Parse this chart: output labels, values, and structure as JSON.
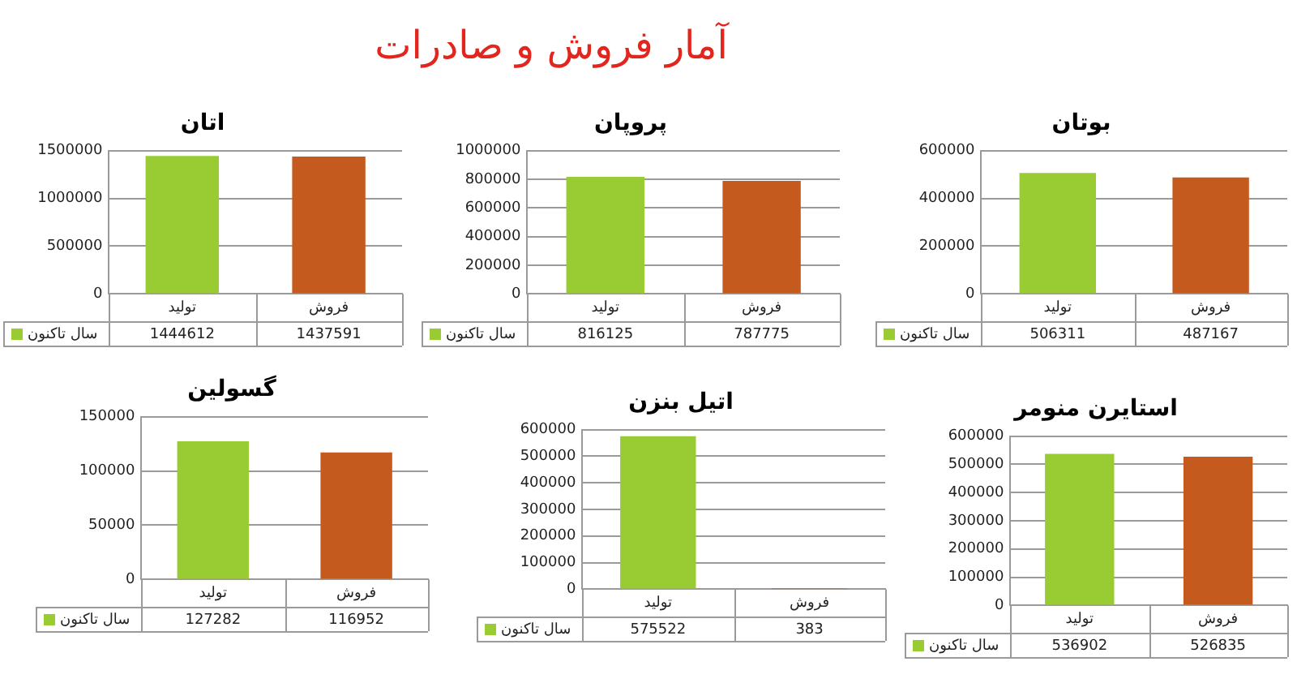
{
  "chart_data": [
    {
      "type": "bar",
      "title": "اتان",
      "annotations": [
        "آمار فروش و صادرات"
      ],
      "categories": [
        "تولید",
        "فروش"
      ],
      "series": [
        {
          "name": "سال تاکنون",
          "color": "#99cc33",
          "colors": [
            "#99cc33",
            "#c55a1e"
          ],
          "values": [
            1444612,
            1437591
          ]
        }
      ],
      "ylim": [
        0,
        1500000
      ],
      "yticks": [
        0,
        500000,
        1000000,
        1500000
      ],
      "grid": "y",
      "legend": "bottom left",
      "data_labels": true
    },
    {
      "type": "bar",
      "title": "پروپان",
      "categories": [
        "تولید",
        "فروش"
      ],
      "series": [
        {
          "name": "سال تاکنون",
          "color": "#99cc33",
          "colors": [
            "#99cc33",
            "#c55a1e"
          ],
          "values": [
            816125,
            787775
          ]
        }
      ],
      "ylim": [
        0,
        1000000
      ],
      "yticks": [
        0,
        200000,
        400000,
        600000,
        800000,
        1000000
      ],
      "grid": "y",
      "legend": "bottom left",
      "data_labels": true
    },
    {
      "type": "bar",
      "title": "بوتان",
      "categories": [
        "تولید",
        "فروش"
      ],
      "series": [
        {
          "name": "سال تاکنون",
          "color": "#99cc33",
          "colors": [
            "#99cc33",
            "#c55a1e"
          ],
          "values": [
            506311,
            487167
          ]
        }
      ],
      "ylim": [
        0,
        600000
      ],
      "yticks": [
        0,
        200000,
        400000,
        600000
      ],
      "grid": "y",
      "legend": "bottom left",
      "data_labels": true
    },
    {
      "type": "bar",
      "title": "گسولین",
      "categories": [
        "تولید",
        "فروش"
      ],
      "series": [
        {
          "name": "سال تاکنون",
          "color": "#99cc33",
          "colors": [
            "#99cc33",
            "#c55a1e"
          ],
          "values": [
            127282,
            116952
          ]
        }
      ],
      "ylim": [
        0,
        150000
      ],
      "yticks": [
        0,
        50000,
        100000,
        150000
      ],
      "grid": "y",
      "legend": "bottom left",
      "data_labels": true
    },
    {
      "type": "bar",
      "title": "اتیل بنزن",
      "categories": [
        "تولید",
        "فروش"
      ],
      "series": [
        {
          "name": "سال تاکنون",
          "color": "#99cc33",
          "colors": [
            "#99cc33",
            "#c55a1e"
          ],
          "values": [
            575522,
            383
          ]
        }
      ],
      "ylim": [
        0,
        600000
      ],
      "yticks": [
        0,
        100000,
        200000,
        300000,
        400000,
        500000,
        600000
      ],
      "grid": "y",
      "legend": "bottom left",
      "data_labels": true
    },
    {
      "type": "bar",
      "title": "استایرن منومر",
      "categories": [
        "تولید",
        "فروش"
      ],
      "series": [
        {
          "name": "سال تاکنون",
          "color": "#99cc33",
          "colors": [
            "#99cc33",
            "#c55a1e"
          ],
          "values": [
            536902,
            526835
          ]
        }
      ],
      "ylim": [
        0,
        600000
      ],
      "yticks": [
        0,
        100000,
        200000,
        300000,
        400000,
        500000,
        600000
      ],
      "grid": "y",
      "legend": "bottom left",
      "data_labels": true
    }
  ]
}
